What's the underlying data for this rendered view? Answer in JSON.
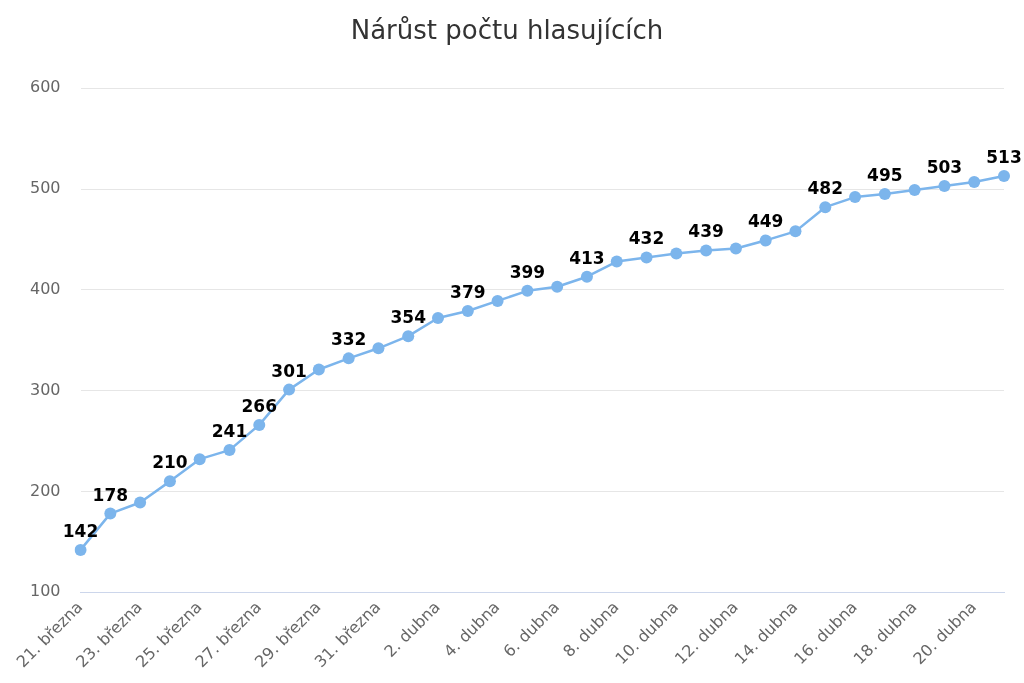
{
  "chart_data": {
    "type": "line",
    "title": "Nárůst počtu hlasujících",
    "categories": [
      "21. března",
      null,
      "23. března",
      null,
      "25. března",
      null,
      "27. března",
      null,
      "29. března",
      null,
      "31. března",
      null,
      "2. dubna",
      null,
      "4. dubna",
      null,
      "6. dubna",
      null,
      "8. dubna",
      null,
      "10. dubna",
      null,
      "12. dubna",
      null,
      "14. dubna",
      null,
      "16. dubna",
      null,
      "18. dubna",
      null,
      "20. dubna",
      null
    ],
    "series": [
      {
        "color": "#7cb5ec",
        "values": [
          142,
          178,
          189,
          210,
          232,
          241,
          266,
          301,
          321,
          332,
          342,
          354,
          372,
          379,
          389,
          399,
          403,
          413,
          428,
          432,
          436,
          439,
          441,
          449,
          458,
          482,
          492,
          495,
          499,
          503,
          507,
          513
        ],
        "value_labels": [
          "142",
          "178",
          null,
          "210",
          null,
          "241",
          "266",
          "301",
          null,
          "332",
          null,
          "354",
          null,
          "379",
          null,
          "399",
          null,
          "413",
          null,
          "432",
          null,
          "439",
          null,
          "449",
          null,
          "482",
          null,
          "495",
          null,
          "503",
          null,
          "513"
        ]
      }
    ],
    "ylim": [
      100,
      600
    ],
    "yticks": [
      100,
      200,
      300,
      400,
      500,
      600
    ],
    "grid": "y",
    "legend": false,
    "marker": "circle",
    "line_style": "solid"
  }
}
